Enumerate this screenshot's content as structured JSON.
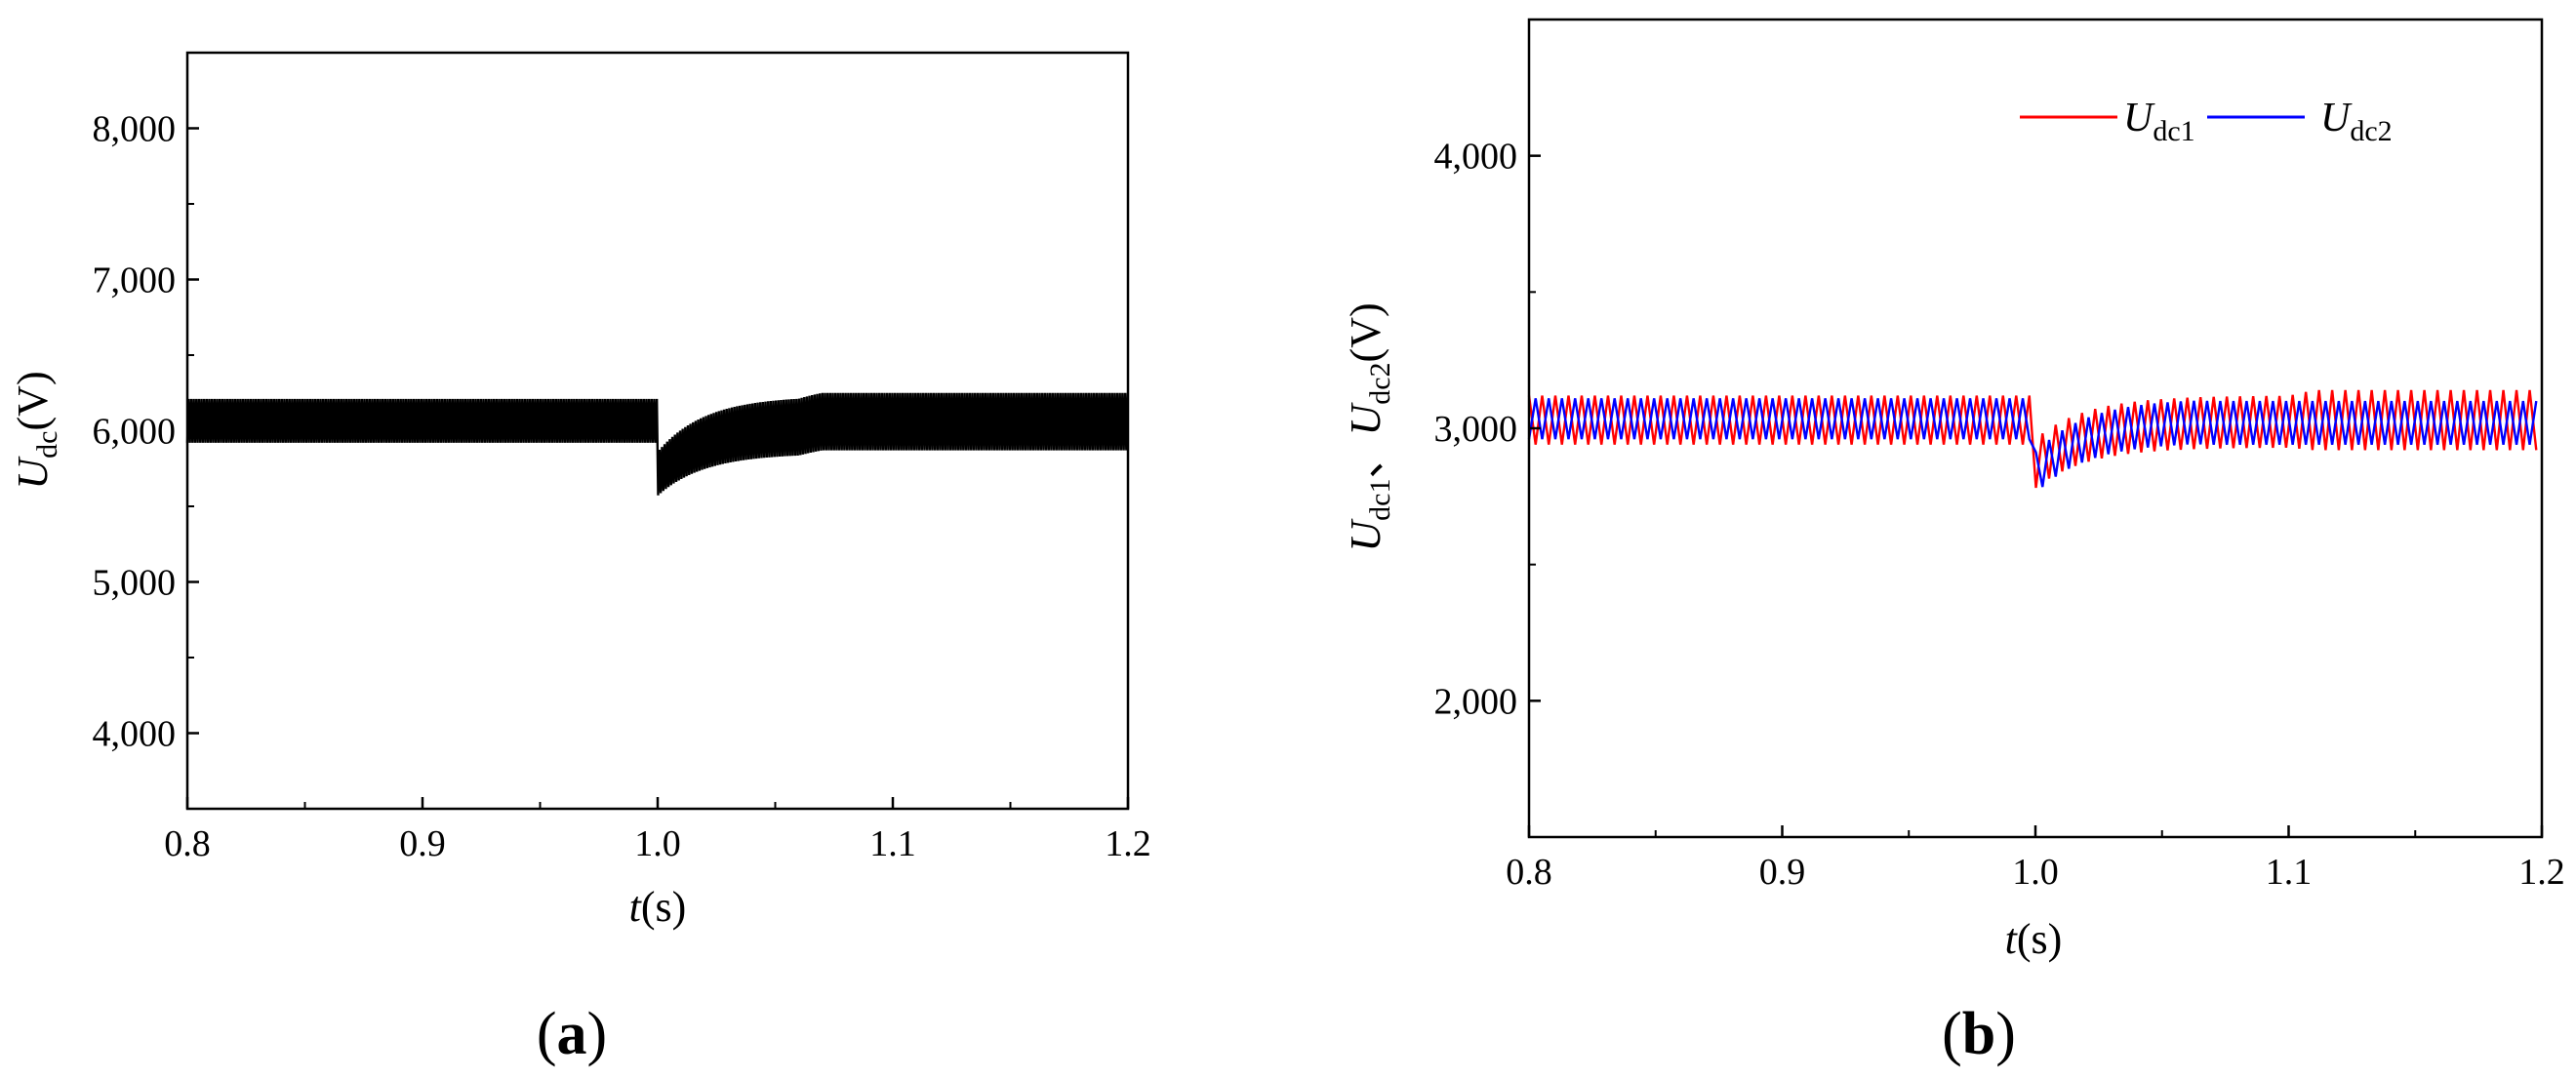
{
  "chart_data": [
    {
      "panel_label": "a",
      "type": "line",
      "xlabel": {
        "var": "t",
        "unit": "(s)"
      },
      "ylabel": {
        "var": "U",
        "sub": "dc",
        "unit": "(V)"
      },
      "xlim": [
        0.8,
        1.2
      ],
      "ylim": [
        3500,
        8500
      ],
      "xticks": [
        0.8,
        0.9,
        1.0,
        1.1,
        1.2
      ],
      "xtick_labels": [
        "0.8",
        "0.9",
        "1.0",
        "1.1",
        "1.2"
      ],
      "yticks": [
        4000,
        5000,
        6000,
        7000,
        8000
      ],
      "ytick_labels": [
        "4,000",
        "5,000",
        "6,000",
        "7,000",
        "8,000"
      ],
      "grid": false,
      "series": [
        {
          "color": "#000000",
          "ripple_band": {
            "before_step": {
              "t": [
                0.8,
                1.0
              ],
              "min": 5920,
              "max": 6210
            },
            "step_time": 1.0,
            "dip_min": 5570,
            "recovery": {
              "t": [
                1.0,
                1.06
              ],
              "settled_min": 5850,
              "settled_max": 6230
            },
            "after": {
              "t": [
                1.06,
                1.2
              ],
              "min": 5870,
              "max": 6250
            }
          }
        }
      ]
    },
    {
      "panel_label": "b",
      "type": "line",
      "xlabel": {
        "var": "t",
        "unit": "(s)"
      },
      "ylabel": {
        "var1": "U",
        "sub1": "dc1",
        "sep": "、",
        "var2": "U",
        "sub2": "dc2",
        "unit": "(V)"
      },
      "xlim": [
        0.8,
        1.2
      ],
      "ylim": [
        1500,
        4500
      ],
      "xticks": [
        0.8,
        0.9,
        1.0,
        1.1,
        1.2
      ],
      "xtick_labels": [
        "0.8",
        "0.9",
        "1.0",
        "1.1",
        "1.2"
      ],
      "yticks": [
        2000,
        3000,
        4000
      ],
      "ytick_labels": [
        "2,000",
        "3,000",
        "4,000"
      ],
      "grid": false,
      "legend": "top-right",
      "series": [
        {
          "name": {
            "var": "U",
            "sub": "dc1"
          },
          "color": "#ff0000",
          "ripple_band": {
            "before_step": {
              "t": [
                0.8,
                1.0
              ],
              "min": 2940,
              "max": 3120
            },
            "step_time": 1.0,
            "dip_min": 2780,
            "recovery": {
              "t": [
                1.0,
                1.06
              ]
            },
            "after": {
              "t": [
                1.1,
                1.2
              ],
              "min": 2920,
              "max": 3140
            }
          }
        },
        {
          "name": {
            "var": "U",
            "sub": "dc2"
          },
          "color": "#0000ff",
          "ripple_band": {
            "before_step": {
              "t": [
                0.8,
                1.0
              ],
              "min": 2960,
              "max": 3110
            },
            "step_time": 1.0,
            "dip_min": 2760,
            "recovery": {
              "t": [
                1.0,
                1.06
              ]
            },
            "after": {
              "t": [
                1.06,
                1.2
              ],
              "min": 2940,
              "max": 3100
            }
          }
        }
      ]
    }
  ]
}
